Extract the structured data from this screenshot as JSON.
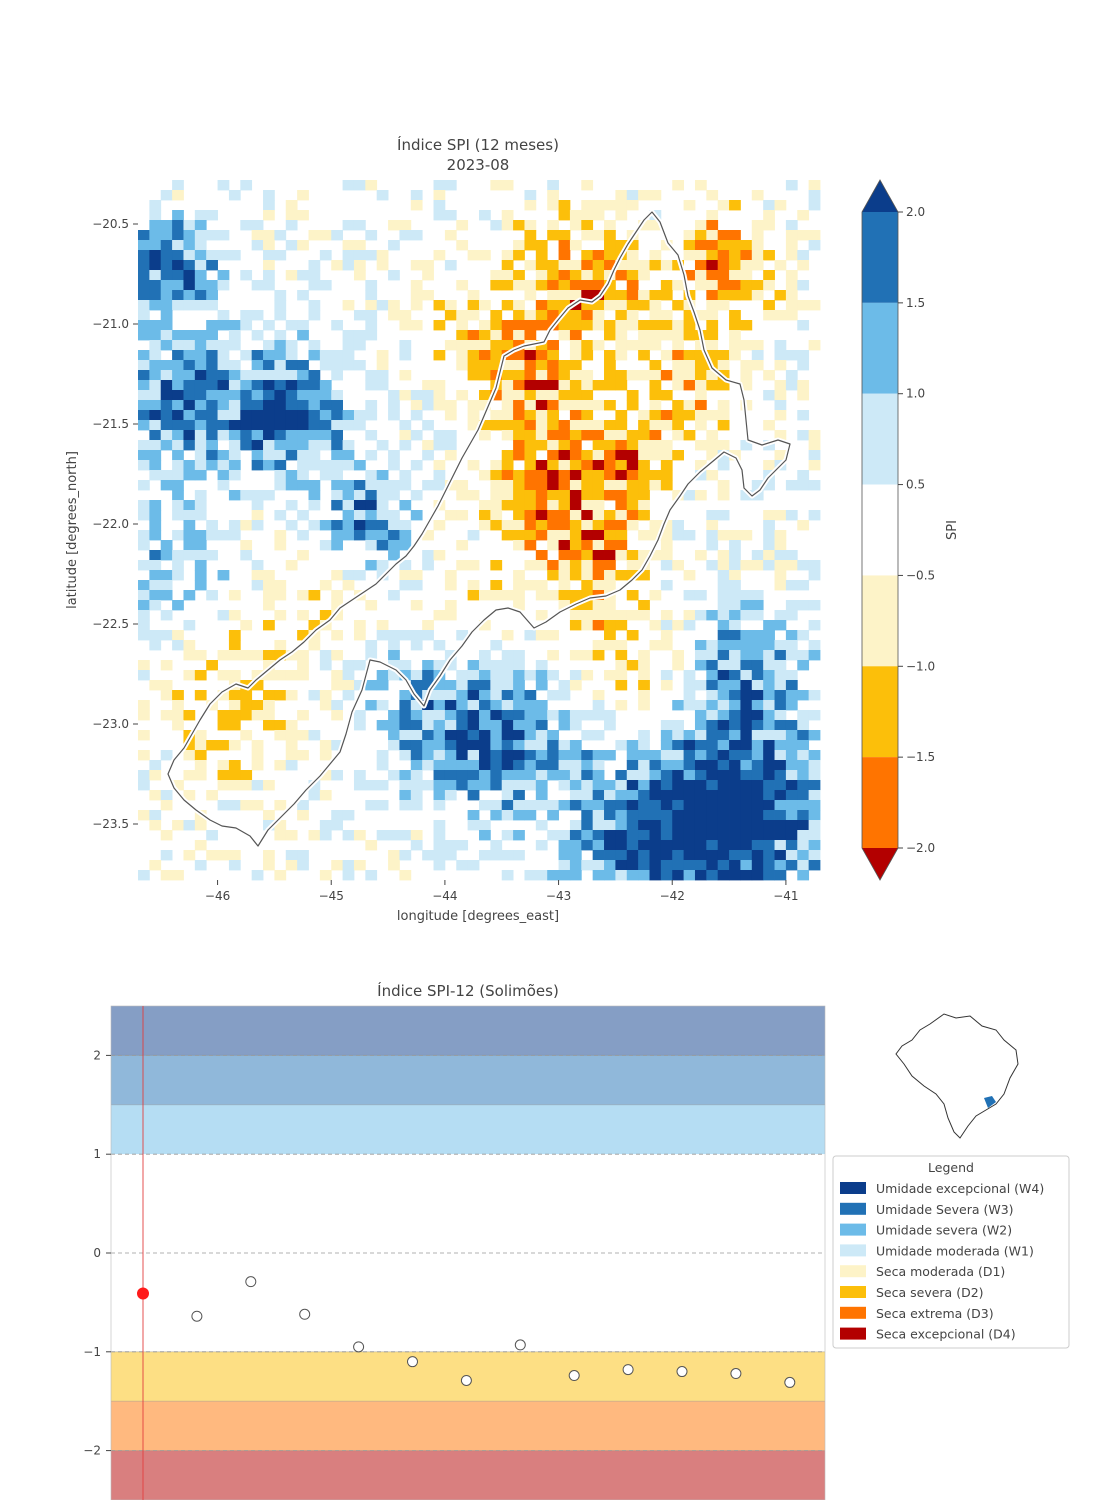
{
  "map_chart": {
    "title_line1": "Índice SPI (12 meses)",
    "title_line2": "2023-08",
    "xlabel": "longitude [degrees_east]",
    "ylabel": "latitude [degrees_north]",
    "xticks": [
      -46,
      -45,
      -44,
      -43,
      -42,
      -41
    ],
    "xtick_labels": [
      "−46",
      "−45",
      "−44",
      "−43",
      "−42",
      "−41"
    ],
    "yticks": [
      -20.5,
      -21.0,
      -21.5,
      -22.0,
      -22.5,
      -23.0,
      -23.5
    ],
    "ytick_labels": [
      "−20.5",
      "−21.0",
      "−21.5",
      "−22.0",
      "−22.5",
      "−23.0",
      "−23.5"
    ],
    "xlim": [
      -46.7,
      -40.7
    ],
    "ylim": [
      -23.78,
      -20.28
    ],
    "colorbar": {
      "label": "SPI",
      "ticks": [
        2.0,
        1.5,
        1.0,
        0.5,
        -0.5,
        -1.0,
        -1.5,
        -2.0
      ],
      "tick_labels": [
        "2.0",
        "1.5",
        "1.0",
        "0.5",
        "−0.5",
        "−1.0",
        "−1.5",
        "−2.0"
      ],
      "bins": [
        {
          "from": 1.5,
          "to": 2.0,
          "color": "#2171b5"
        },
        {
          "from": 1.0,
          "to": 1.5,
          "color": "#6cbbe8"
        },
        {
          "from": 0.5,
          "to": 1.0,
          "color": "#cde9f7"
        },
        {
          "from": -0.5,
          "to": 0.5,
          "color": "#ffffff"
        },
        {
          "from": -1.0,
          "to": -0.5,
          "color": "#fdf3c8"
        },
        {
          "from": -1.5,
          "to": -1.0,
          "color": "#fcbf0a"
        },
        {
          "from": -2.0,
          "to": -1.5,
          "color": "#ff7400"
        }
      ],
      "over_color": "#0b3d8b",
      "under_color": "#b30000"
    }
  },
  "chart_data": {
    "type": "scatter",
    "title": "Índice SPI-12 (Solimões)",
    "y_ticks": [
      2,
      1,
      0,
      -1,
      -2
    ],
    "y_tick_labels": [
      "2",
      "1",
      "0",
      "−1",
      "−2"
    ],
    "ylim": [
      -2.5,
      2.5
    ],
    "values": [
      -0.41,
      -0.64,
      -0.29,
      -0.62,
      -0.95,
      -1.1,
      -1.29,
      -0.93,
      -1.24,
      -1.18,
      -1.2,
      -1.22,
      -1.31
    ],
    "highlight_index": 0,
    "bands": [
      {
        "from": 2.0,
        "to": 2.5,
        "color": "#0b3d8b"
      },
      {
        "from": 1.5,
        "to": 2.0,
        "color": "#2171b5"
      },
      {
        "from": 1.0,
        "to": 1.5,
        "color": "#6cbbe8"
      },
      {
        "from": -0.5,
        "to": 1.0,
        "color": "#ffffff"
      },
      {
        "from": -1.0,
        "to": -0.5,
        "color": "#ffffff"
      },
      {
        "from": -1.5,
        "to": -1.0,
        "color": "#fcbf0a"
      },
      {
        "from": -2.0,
        "to": -1.5,
        "color": "#ff7400"
      },
      {
        "from": -2.5,
        "to": -2.0,
        "color": "#b30000"
      }
    ]
  },
  "legend": {
    "title": "Legend",
    "items": [
      {
        "label": "Umidade excepcional (W4)",
        "color": "#0b3d8b"
      },
      {
        "label": "Umidade Severa (W3)",
        "color": "#2171b5"
      },
      {
        "label": "Umidade severa (W2)",
        "color": "#6cbbe8"
      },
      {
        "label": "Umidade moderada (W1)",
        "color": "#cde9f7"
      },
      {
        "label": "Seca moderada (D1)",
        "color": "#fdf3c8"
      },
      {
        "label": "Seca severa (D2)",
        "color": "#fcbf0a"
      },
      {
        "label": "Seca extrema (D3)",
        "color": "#ff7400"
      },
      {
        "label": "Seca excepcional (D4)",
        "color": "#b30000"
      }
    ]
  }
}
